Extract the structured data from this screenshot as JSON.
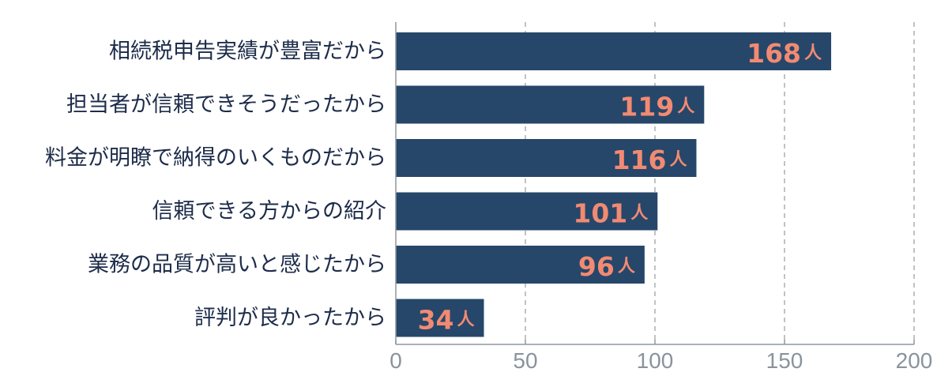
{
  "chart_data": {
    "type": "bar",
    "orientation": "horizontal",
    "categories": [
      "相続税申告実績が豊富だから",
      "担当者が信頼できそうだったから",
      "料金が明瞭で納得のいくものだから",
      "信頼できる方からの紹介",
      "業務の品質が高いと感じたから",
      "評判が良かったから"
    ],
    "values": [
      168,
      119,
      116,
      101,
      96,
      34
    ],
    "value_unit": "人",
    "xlim": [
      0,
      200
    ],
    "xticks": [
      0,
      50,
      100,
      150,
      200
    ],
    "grid": "vertical-dashed",
    "colors": {
      "bar": "#26476a",
      "value_label": "#f28a72",
      "category_label": "#1d2c4a",
      "tick_label": "#8a939c",
      "grid": "#a9afb6",
      "axis": "#8f979f"
    }
  }
}
